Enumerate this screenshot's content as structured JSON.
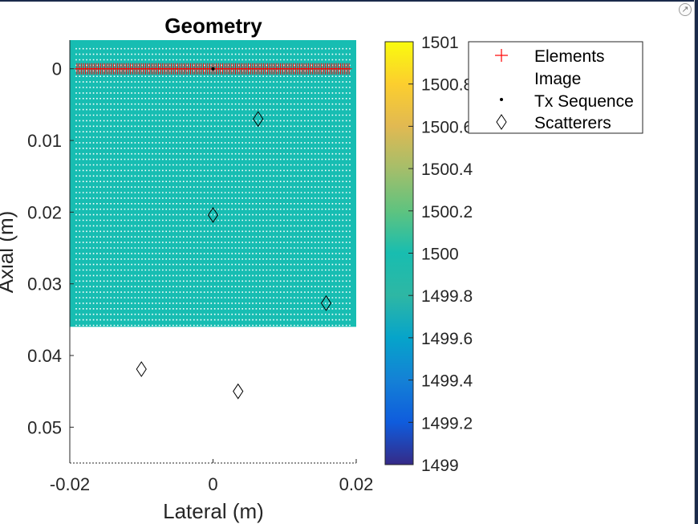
{
  "window": {
    "export_icon": "arrow-out-icon"
  },
  "chart_data": [
    {
      "type": "scatter",
      "title": "Geometry",
      "xlabel": "Lateral (m)",
      "ylabel": "Axial (m)",
      "xlim": [
        -0.02,
        0.02
      ],
      "ylim": [
        -0.004,
        0.055
      ],
      "y_reversed": true,
      "x_ticks": [
        -0.02,
        0,
        0.02
      ],
      "x_tick_labels": [
        "-0.02",
        "0",
        "0.02"
      ],
      "y_ticks": [
        0,
        0.01,
        0.02,
        0.03,
        0.04,
        0.05
      ],
      "y_tick_labels": [
        "0",
        "0.01",
        "0.02",
        "0.03",
        "0.04",
        "0.05"
      ],
      "medium": {
        "x_range": [
          -0.02,
          0.02
        ],
        "y_range": [
          -0.004,
          0.036
        ],
        "sound_speed": 1500,
        "color": "#17bdb2"
      },
      "image_grid": {
        "x_range": [
          -0.0191,
          0.0191
        ],
        "y_range": [
          -0.0028,
          0.0358
        ],
        "nx": 80,
        "ny": 51,
        "color": "#ffffff"
      },
      "series": [
        {
          "name": "Elements",
          "marker": "plus",
          "color": "#ff0000",
          "count": 128,
          "x_range": [
            -0.019,
            0.019
          ],
          "y": 0
        },
        {
          "name": "Image",
          "marker": "dot",
          "color": "#ffffff"
        },
        {
          "name": "Tx Sequence",
          "marker": "dot",
          "color": "#000000",
          "points": [
            {
              "x": 0,
              "y": 0
            }
          ]
        },
        {
          "name": "Scatterers",
          "marker": "diamond",
          "color": "#000000",
          "points": [
            {
              "x": 0.0063,
              "y": 0.007
            },
            {
              "x": 0.0,
              "y": 0.0204
            },
            {
              "x": 0.0158,
              "y": 0.0327
            },
            {
              "x": -0.01,
              "y": 0.0419
            },
            {
              "x": 0.0035,
              "y": 0.045
            }
          ]
        }
      ],
      "colorbar": {
        "min": 1499,
        "max": 1501,
        "ticks": [
          1499,
          1499.2,
          1499.4,
          1499.6,
          1499.8,
          1500,
          1500.2,
          1500.4,
          1500.6,
          1500.8,
          1501
        ],
        "tick_labels": [
          "1499",
          "1499.2",
          "1499.4",
          "1499.6",
          "1499.8",
          "1500",
          "1500.2",
          "1500.4",
          "1500.6",
          "1500.8",
          "1501"
        ],
        "colormap": "parula"
      },
      "legend": {
        "location": "top-right",
        "entries": [
          "Elements",
          "Image",
          "Tx Sequence",
          "Scatterers"
        ]
      }
    }
  ]
}
